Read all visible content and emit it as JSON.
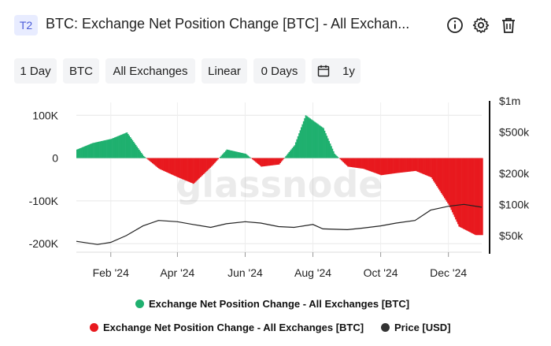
{
  "header": {
    "badge": "T2",
    "title": "BTC: Exchange Net Position Change [BTC] - All Exchan...",
    "icons": [
      "info-icon",
      "gear-icon",
      "trash-icon"
    ]
  },
  "toolbar": {
    "resolution": "1 Day",
    "asset": "BTC",
    "exchange": "All Exchanges",
    "scale": "Linear",
    "sma": "0 Days",
    "range": "1y"
  },
  "watermark": "glassnode",
  "colors": {
    "positive": "#1fb06f",
    "negative": "#e8191e",
    "price": "#222222"
  },
  "chart_data": {
    "type": "bar",
    "x_ticks": [
      "Feb '24",
      "Apr '24",
      "Jun '24",
      "Aug '24",
      "Oct '24",
      "Dec '24"
    ],
    "y_left_ticks": [
      "100K",
      "0",
      "-100K",
      "-200K"
    ],
    "y_left_tick_values": [
      100000,
      0,
      -100000,
      -200000
    ],
    "y_right_ticks": [
      "$1m",
      "$500k",
      "$200k",
      "$100k",
      "$50k"
    ],
    "y_right_tick_values": [
      1000000,
      500000,
      200000,
      100000,
      50000
    ],
    "y_right_scale": "log",
    "ylim_left": [
      -220000,
      130000
    ],
    "grid": true,
    "legend_position": "bottom",
    "series": [
      {
        "name": "Exchange Net Position Change - All Exchanges [BTC]",
        "kind": "bar",
        "x": [
          "2024-01-01",
          "2024-01-15",
          "2024-02-01",
          "2024-02-15",
          "2024-03-01",
          "2024-03-15",
          "2024-04-01",
          "2024-04-15",
          "2024-05-01",
          "2024-05-15",
          "2024-06-01",
          "2024-06-15",
          "2024-07-01",
          "2024-07-15",
          "2024-07-25",
          "2024-08-10",
          "2024-08-20",
          "2024-09-01",
          "2024-09-15",
          "2024-10-01",
          "2024-10-15",
          "2024-11-01",
          "2024-11-15",
          "2024-12-01",
          "2024-12-10",
          "2024-12-25"
        ],
        "values": [
          20000,
          35000,
          45000,
          60000,
          5000,
          -25000,
          -45000,
          -60000,
          -20000,
          20000,
          10000,
          -20000,
          -15000,
          30000,
          100000,
          70000,
          10000,
          -20000,
          -25000,
          -40000,
          -35000,
          -30000,
          -45000,
          -110000,
          -160000,
          -180000
        ]
      },
      {
        "name": "Price [USD]",
        "kind": "line",
        "x": [
          "2024-01-01",
          "2024-01-20",
          "2024-02-01",
          "2024-02-15",
          "2024-03-01",
          "2024-03-15",
          "2024-04-01",
          "2024-04-15",
          "2024-05-01",
          "2024-05-15",
          "2024-06-01",
          "2024-06-15",
          "2024-07-01",
          "2024-07-15",
          "2024-08-01",
          "2024-08-10",
          "2024-09-01",
          "2024-09-15",
          "2024-10-01",
          "2024-10-15",
          "2024-11-01",
          "2024-11-15",
          "2024-12-01",
          "2024-12-15",
          "2024-12-31"
        ],
        "values": [
          44000,
          41000,
          43000,
          50000,
          62000,
          70000,
          68000,
          64000,
          60000,
          65000,
          68000,
          66000,
          61000,
          60000,
          64000,
          58000,
          57000,
          59000,
          62000,
          66000,
          70000,
          88000,
          96000,
          100000,
          94000
        ]
      }
    ],
    "legend": [
      {
        "label": "Exchange Net Position Change - All Exchanges [BTC]",
        "color": "#1fb06f"
      },
      {
        "label": "Exchange Net Position Change - All Exchanges [BTC]",
        "color": "#e8191e"
      },
      {
        "label": "Price [USD]",
        "color": "#333333"
      }
    ]
  }
}
